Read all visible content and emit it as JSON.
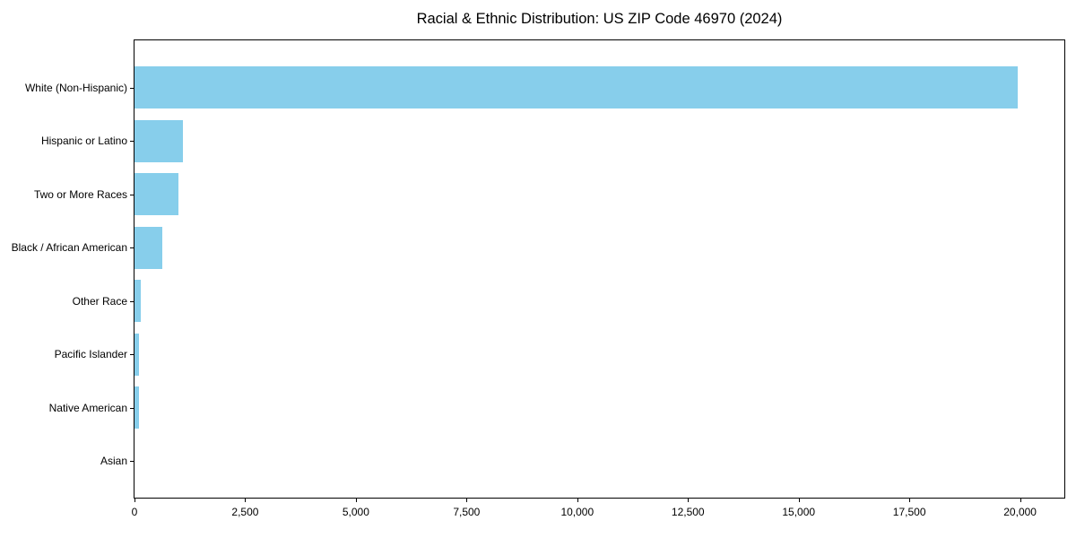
{
  "chart_data": {
    "type": "bar",
    "orientation": "horizontal",
    "title": "Racial & Ethnic Distribution: US ZIP Code 46970 (2024)",
    "categories": [
      "White (Non-Hispanic)",
      "Hispanic or Latino",
      "Two or More Races",
      "Black / African American",
      "Other Race",
      "Pacific Islander",
      "Native American",
      "Asian"
    ],
    "values": [
      19950,
      1100,
      1000,
      620,
      150,
      110,
      100,
      0
    ],
    "xlabel": "",
    "ylabel": "",
    "xlim": [
      0,
      21000
    ],
    "x_ticks": [
      0,
      2500,
      5000,
      7500,
      10000,
      12500,
      15000,
      17500,
      20000
    ],
    "x_tick_labels": [
      "0",
      "2,500",
      "5,000",
      "7,500",
      "10,000",
      "12,500",
      "15,000",
      "17,500",
      "20,000"
    ],
    "bar_color": "#87CEEB",
    "grid": false,
    "legend": false,
    "background_color": "#FFFFFF",
    "spine_color": "#000000"
  }
}
